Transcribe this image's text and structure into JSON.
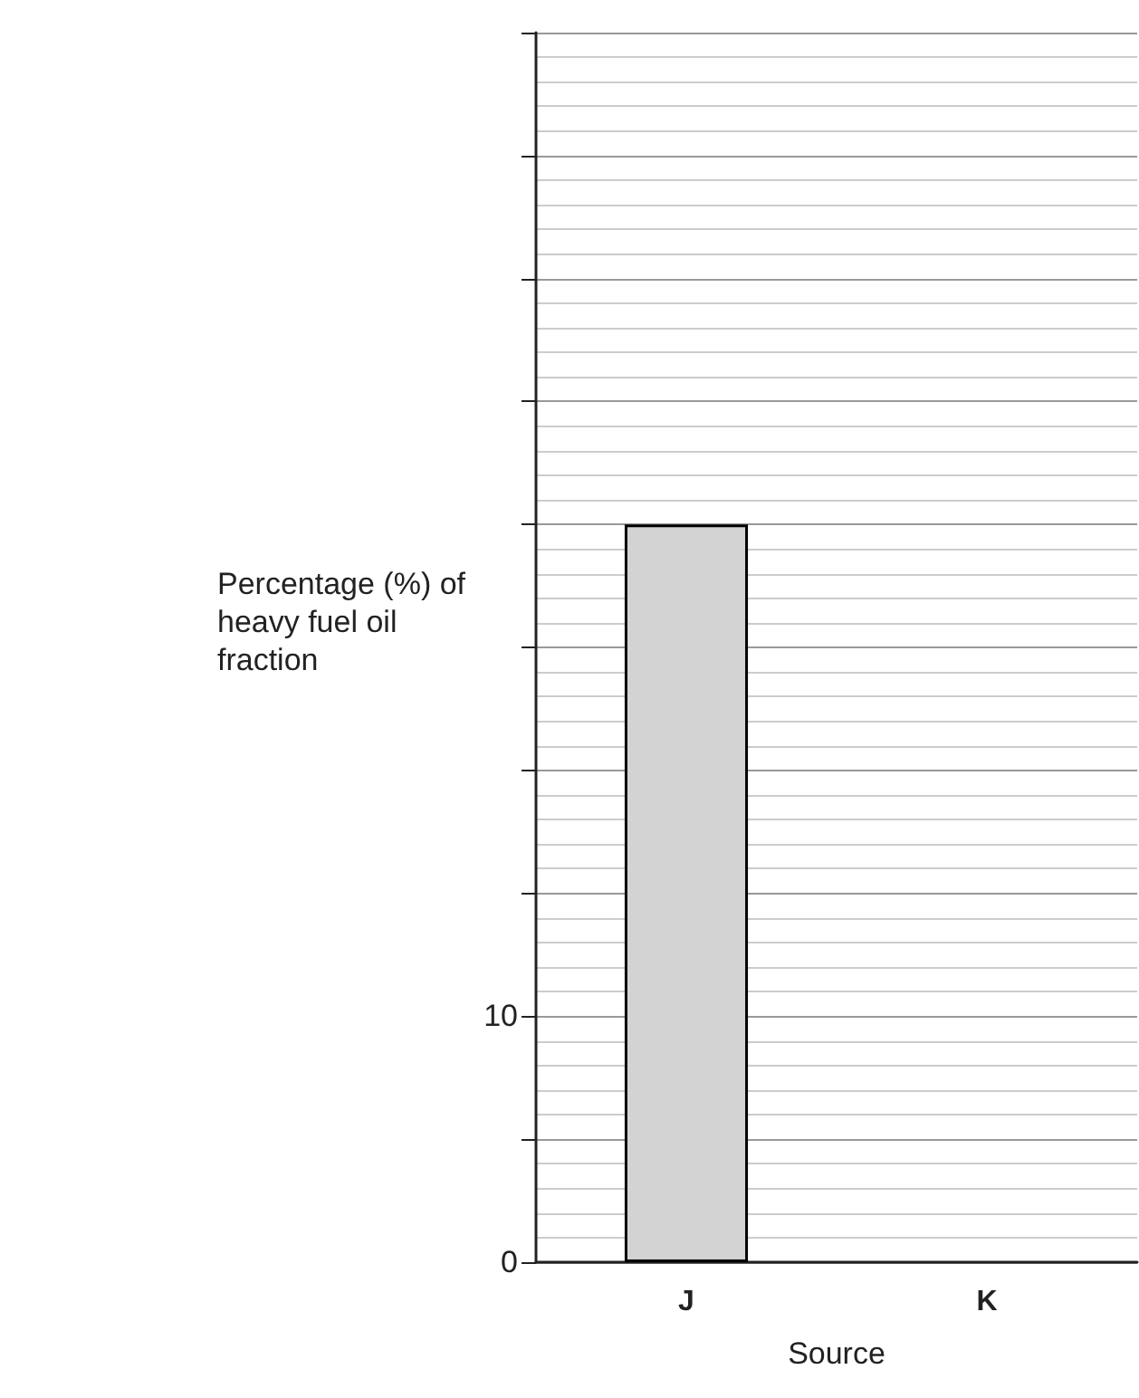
{
  "chart_data": {
    "type": "bar",
    "xlabel": "Source",
    "ylabel": "Percentage (%) of heavy fuel oil fraction",
    "categories": [
      "J",
      "K"
    ],
    "series": [
      {
        "color": "#d3d3d3",
        "values": [
          30,
          null
        ]
      }
    ],
    "ylim": [
      0,
      50
    ],
    "yticks": [
      0,
      {
        "value": 5,
        "label": null
      },
      10,
      {
        "value": 15,
        "label": null
      },
      {
        "value": 20,
        "label": null
      },
      {
        "value": 25,
        "label": null
      },
      {
        "value": 30,
        "label": null
      },
      {
        "value": 35,
        "label": null
      },
      {
        "value": 40,
        "label": null
      },
      {
        "value": 45,
        "label": null
      },
      {
        "value": 50,
        "label": null
      }
    ],
    "grid": "y"
  }
}
